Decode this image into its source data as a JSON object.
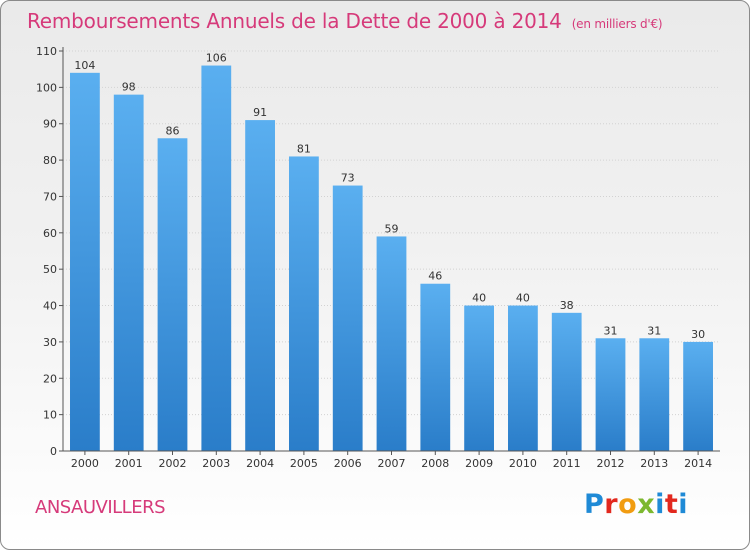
{
  "title": "Remboursements Annuels de la Dette de 2000 à 2014",
  "unit": "(en milliers d'€)",
  "commune": "ANSAUVILLERS",
  "logo": {
    "letters": [
      "P",
      "r",
      "o",
      "x",
      "i",
      "t",
      "i"
    ],
    "colors": [
      "#1f8ad6",
      "#e2281e",
      "#f19c11",
      "#7cb82f",
      "#1f8ad6",
      "#e2281e",
      "#1f8ad6"
    ]
  },
  "colors": {
    "bar_top": "#5aaff0",
    "bar_bottom": "#2a7dc9",
    "title": "#d63a7a",
    "axis": "#555555"
  },
  "chart_data": {
    "type": "bar",
    "categories": [
      "2000",
      "2001",
      "2002",
      "2003",
      "2004",
      "2005",
      "2006",
      "2007",
      "2008",
      "2009",
      "2010",
      "2011",
      "2012",
      "2013",
      "2014"
    ],
    "values": [
      104,
      98,
      86,
      106,
      91,
      81,
      73,
      59,
      46,
      40,
      40,
      38,
      31,
      31,
      30
    ],
    "ylim": [
      0,
      110
    ],
    "yticks": [
      0,
      10,
      20,
      30,
      40,
      50,
      60,
      70,
      80,
      90,
      100,
      110
    ],
    "grid": true,
    "legend": "none"
  }
}
